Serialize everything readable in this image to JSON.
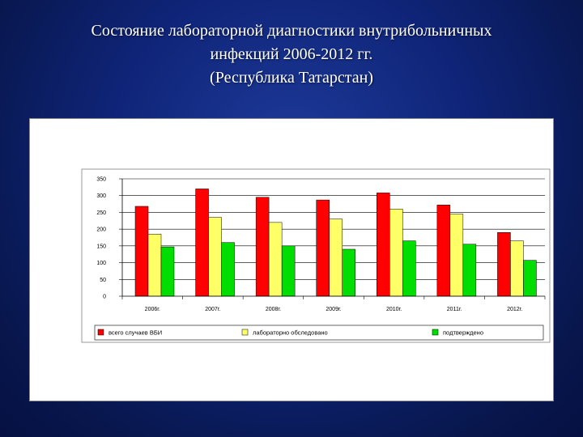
{
  "slide": {
    "title_lines": [
      "Состояние лабораторной диагностики внутрибольничных",
      "инфекций 2006-2012 гг.",
      "(Республика Татарстан)"
    ]
  },
  "chart_data": {
    "type": "bar",
    "title": "",
    "xlabel": "",
    "ylabel": "",
    "categories": [
      "2006г.",
      "2007г.",
      "2008г.",
      "2009г.",
      "2010г.",
      "2011г.",
      "2012г."
    ],
    "ylim": [
      0,
      350
    ],
    "yticks": [
      0,
      50,
      100,
      150,
      200,
      250,
      300,
      350
    ],
    "grid": true,
    "legend_position": "bottom",
    "series": [
      {
        "name": "всего случаев ВБИ",
        "color": "#ff0000",
        "values": [
          268,
          320,
          295,
          287,
          308,
          272,
          190
        ]
      },
      {
        "name": "лабораторно обследовано",
        "color": "#ffff66",
        "values": [
          185,
          235,
          220,
          230,
          260,
          245,
          165
        ]
      },
      {
        "name": "подтверждено",
        "color": "#00dd00",
        "values": [
          147,
          160,
          150,
          140,
          165,
          155,
          107
        ]
      }
    ]
  }
}
